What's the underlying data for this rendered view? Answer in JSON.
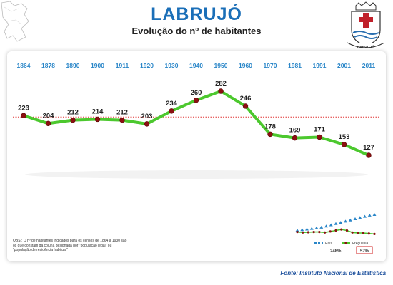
{
  "header": {
    "title": "LABRUJÓ",
    "subtitle": "Evolução do nº de habitantes",
    "crest_label": "LABRUJÓ"
  },
  "chart_data": {
    "type": "line",
    "title": "Evolução do nº de habitantes",
    "x": [
      "1864",
      "1878",
      "1890",
      "1900",
      "1911",
      "1920",
      "1930",
      "1940",
      "1950",
      "1960",
      "1970",
      "1981",
      "1991",
      "2001",
      "2011"
    ],
    "series": [
      {
        "values": [
          223,
          204,
          212,
          214,
          212,
          203,
          234,
          260,
          282,
          246,
          178,
          169,
          171,
          153,
          127
        ]
      }
    ],
    "reference_line": 223,
    "ylim": [
      100,
      300
    ],
    "grid": false,
    "colors": {
      "line": "#4cc82e",
      "marker": "#8b1010",
      "year": "#2a86c8",
      "reference": "#e03030"
    }
  },
  "inset": {
    "legend_pais": "País",
    "legend_freguesia": "Freguesia",
    "pct_pais": "248%",
    "pct_freguesia": "57%",
    "pais_values": [
      1,
      2,
      3,
      4,
      5,
      6,
      8,
      10,
      12,
      14,
      16,
      18,
      20,
      22,
      24,
      26,
      27
    ],
    "freguesia_values": [
      12,
      11,
      11.5,
      12,
      12,
      11,
      13,
      15,
      17,
      15,
      11,
      10,
      10,
      9,
      8
    ]
  },
  "note": "OBS.: O nº de habitantes indicados para os censos de 1864 a 1930 são os que constam da coluna designada por \"população legal\" ou \"população de residência habitual\"",
  "source": "Fonte: Instituto Nacional de Estatística"
}
